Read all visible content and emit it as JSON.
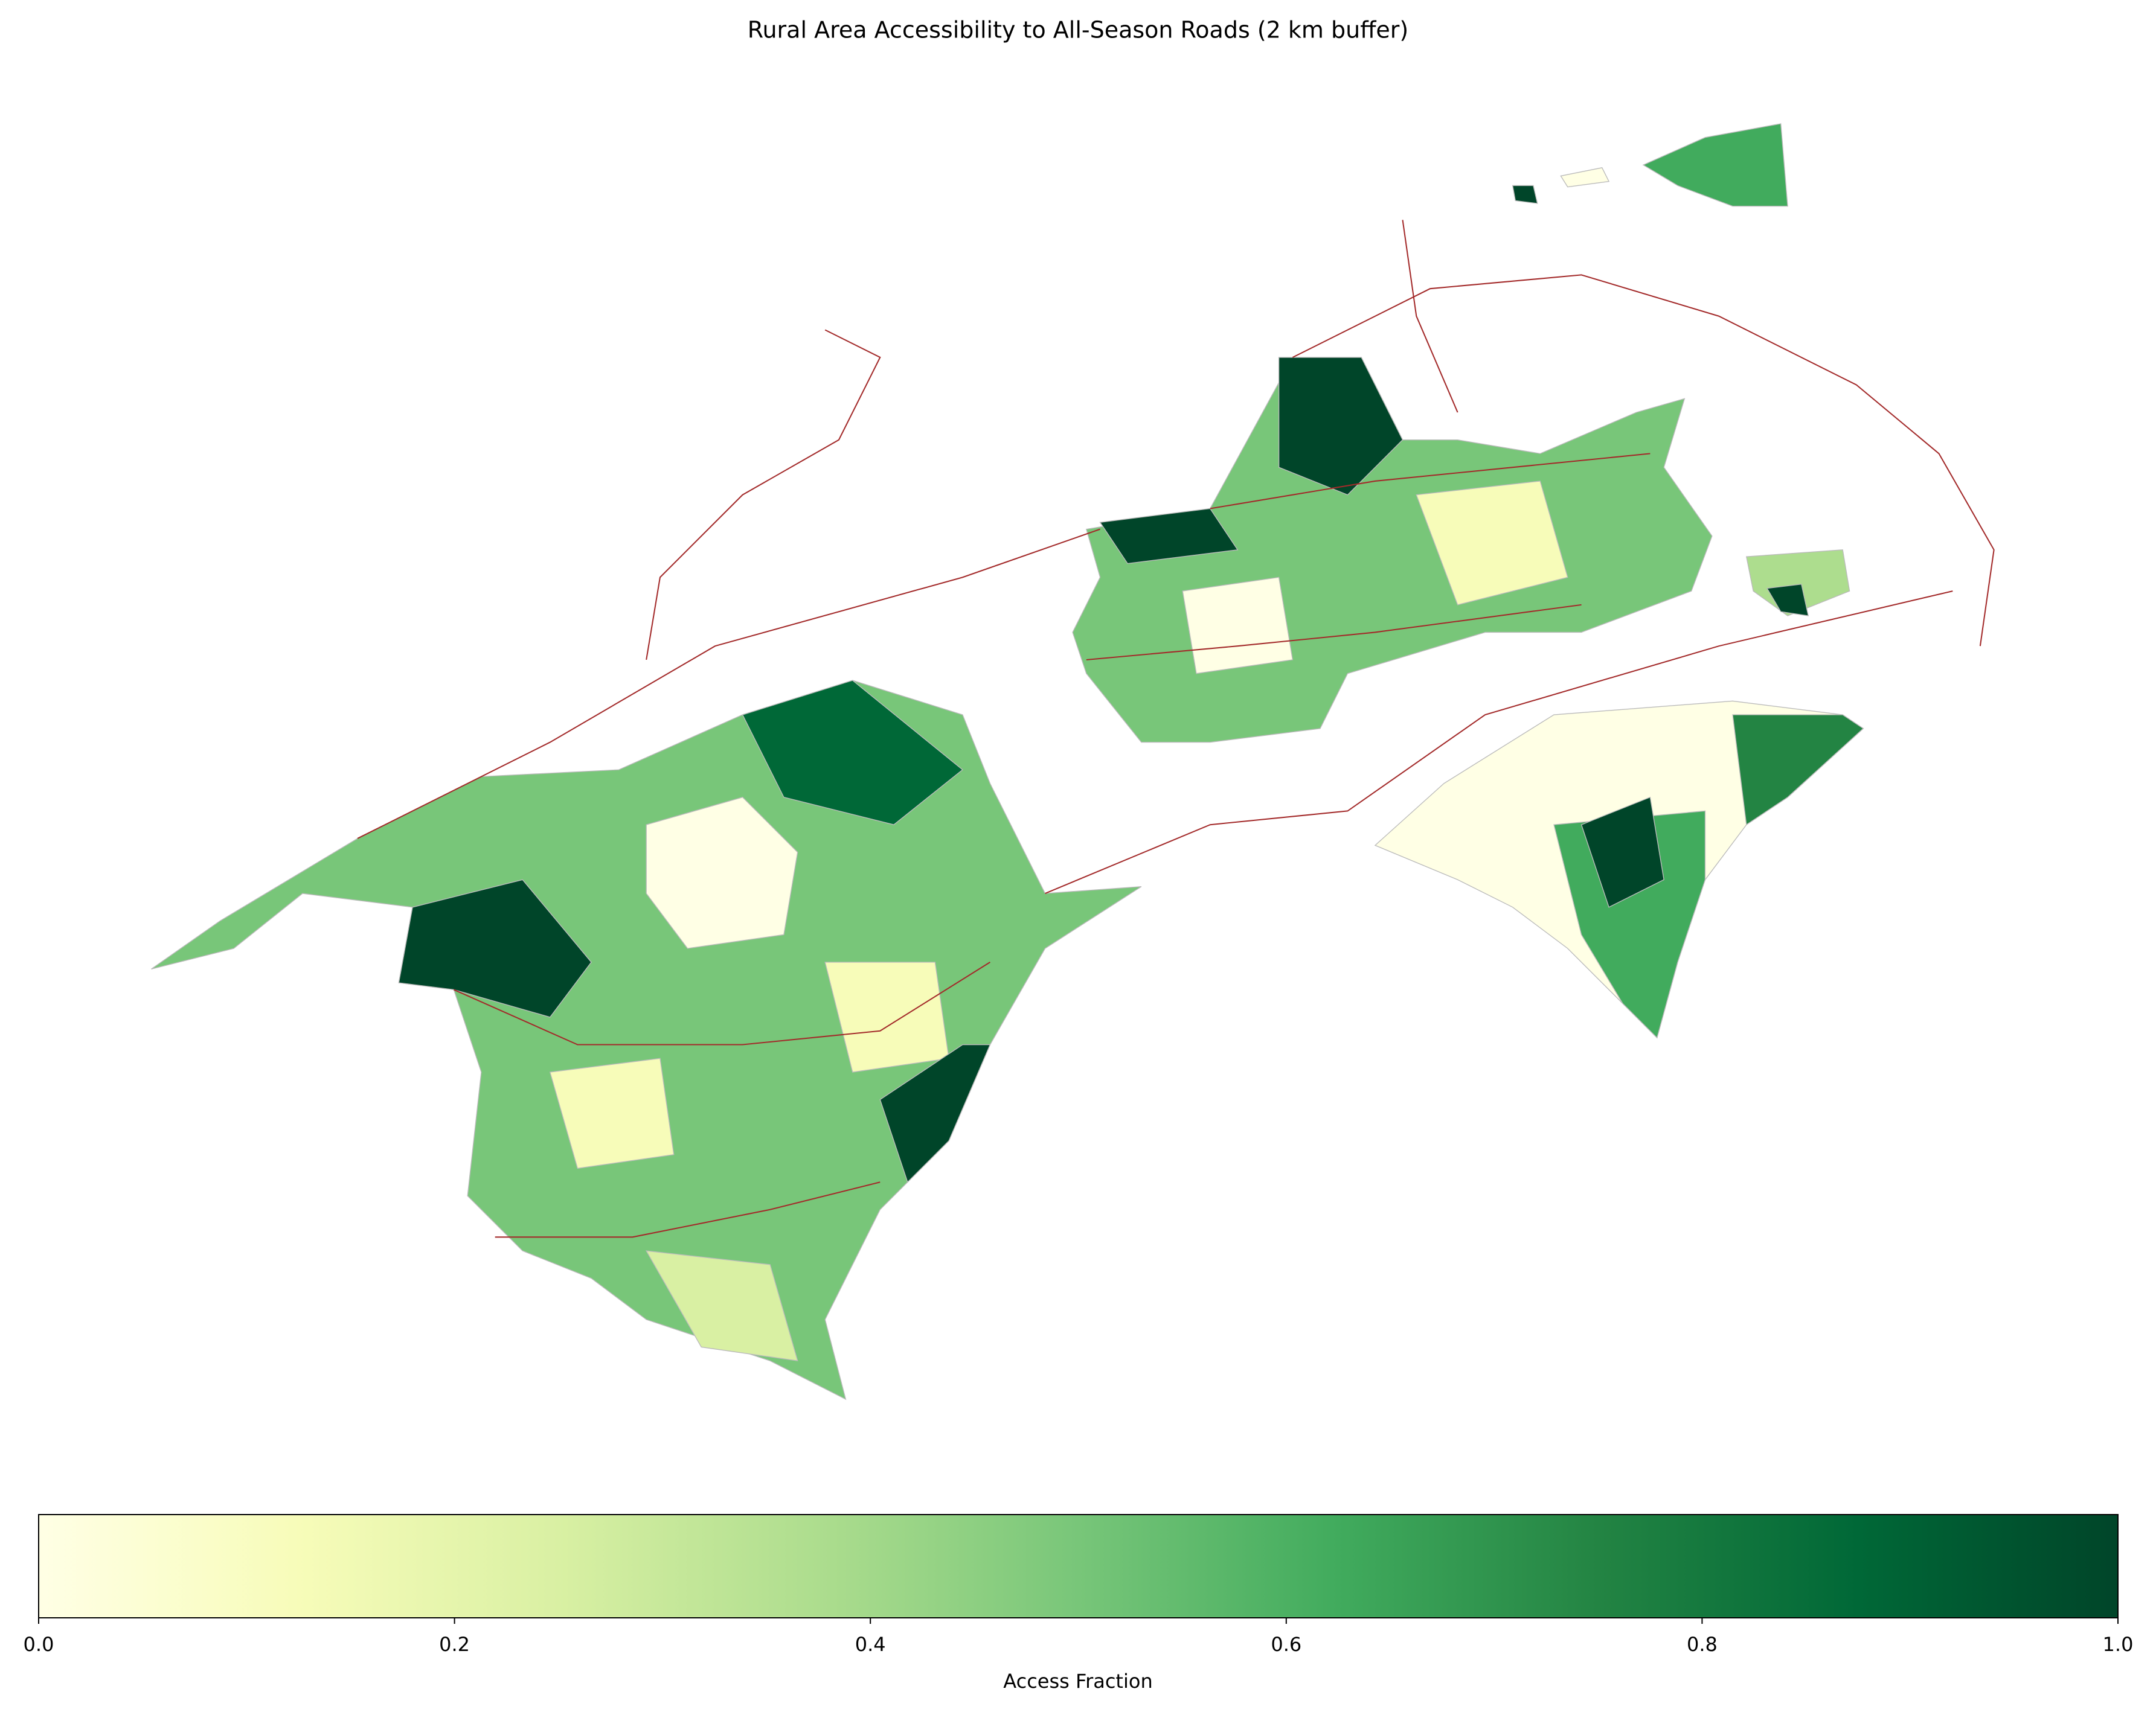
{
  "chart_data": {
    "type": "map",
    "title": "Rural Area Accessibility to All-Season Roads (2 km buffer)",
    "colorbar": {
      "label": "Access Fraction",
      "colormap": "YlGn",
      "xlim": [
        0,
        1
      ],
      "xticks": [
        {
          "value": 0,
          "label": "0.0"
        },
        {
          "value": 0.2,
          "label": "0.2"
        },
        {
          "value": 0.4,
          "label": "0.4"
        },
        {
          "value": 0.6,
          "label": "0.6"
        },
        {
          "value": 0.8,
          "label": "0.8"
        },
        {
          "value": 1,
          "label": "1.0"
        }
      ]
    }
  }
}
